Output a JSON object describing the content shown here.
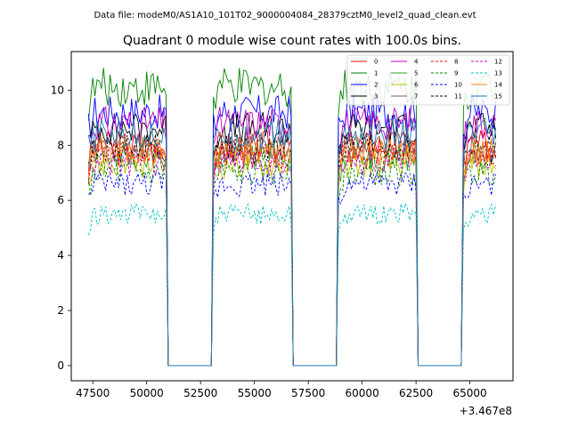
{
  "figure": {
    "suptitle": "Data file: modeM0/AS1A10_101T02_9000004084_28379cztM0_level2_quad_clean.evt"
  },
  "chart_data": {
    "type": "line",
    "title": "Quadrant 0 module wise count rates with 100.0s bins.",
    "xlabel": "",
    "ylabel": "",
    "x_offset_label": "+3.467e8",
    "xlim": [
      46500,
      67000
    ],
    "ylim": [
      -0.55,
      11.4
    ],
    "x_ticks": [
      47500,
      50000,
      52500,
      55000,
      57500,
      60000,
      62500,
      65000
    ],
    "x_tick_labels": [
      "47500",
      "50000",
      "52500",
      "55000",
      "57500",
      "60000",
      "62500",
      "65000"
    ],
    "y_ticks": [
      0,
      2,
      4,
      6,
      8,
      10
    ],
    "y_tick_labels": [
      "0",
      "2",
      "4",
      "6",
      "8",
      "10"
    ],
    "segments": [
      {
        "start": 47300,
        "end": 50900
      },
      {
        "start": 53100,
        "end": 56700
      },
      {
        "start": 58900,
        "end": 62500
      },
      {
        "start": 64700,
        "end": 66200
      }
    ],
    "gaps": [
      {
        "start": 51000,
        "end": 53000
      },
      {
        "start": 56800,
        "end": 58800
      },
      {
        "start": 62600,
        "end": 64600
      }
    ],
    "bin_seconds": 100,
    "legend_position": "top-right",
    "series": [
      {
        "name": "0",
        "color": "#ff0000",
        "style": "solid",
        "mean": 8.0
      },
      {
        "name": "1",
        "color": "#008000",
        "style": "solid",
        "mean": 10.1
      },
      {
        "name": "2",
        "color": "#0000ff",
        "style": "solid",
        "mean": 9.2
      },
      {
        "name": "3",
        "color": "#000000",
        "style": "solid",
        "mean": 8.6
      },
      {
        "name": "4",
        "color": "#bf00bf",
        "style": "solid",
        "mean": 8.8
      },
      {
        "name": "5",
        "color": "#2ca02c",
        "style": "solid",
        "mean": 7.6
      },
      {
        "name": "6",
        "color": "#bfbf00",
        "style": "solid",
        "mean": 7.3
      },
      {
        "name": "7",
        "color": "#8c564b",
        "style": "solid",
        "mean": 7.9
      },
      {
        "name": "8",
        "color": "#ff0000",
        "style": "dashed",
        "mean": 7.7
      },
      {
        "name": "9",
        "color": "#008000",
        "style": "dashed",
        "mean": 7.0
      },
      {
        "name": "10",
        "color": "#0000ff",
        "style": "dashed",
        "mean": 6.6
      },
      {
        "name": "11",
        "color": "#000000",
        "style": "dashed",
        "mean": 7.9
      },
      {
        "name": "12",
        "color": "#bf00bf",
        "style": "dashed",
        "mean": 7.4
      },
      {
        "name": "13",
        "color": "#00bfbf",
        "style": "dashed",
        "mean": 5.5
      },
      {
        "name": "14",
        "color": "#ff7f0e",
        "style": "solid",
        "mean": 7.8
      },
      {
        "name": "15",
        "color": "#1f77b4",
        "style": "solid",
        "mean": 8.4
      }
    ]
  }
}
